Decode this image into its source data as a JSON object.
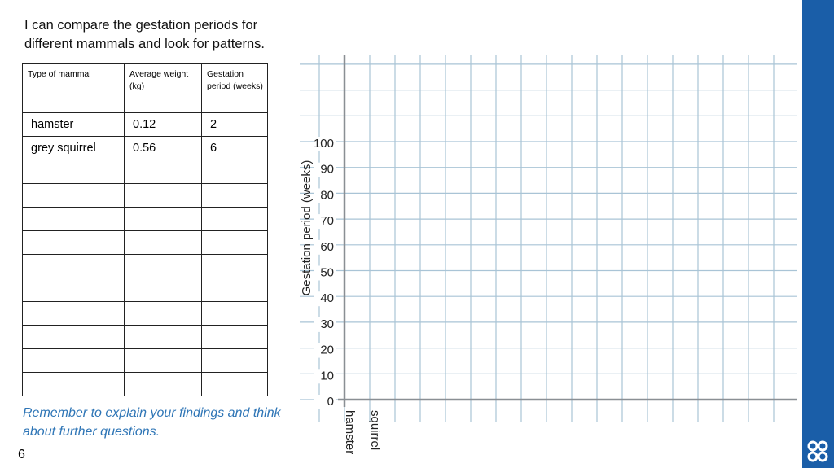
{
  "header": {
    "title": "I can compare the gestation periods for different mammals and look for patterns."
  },
  "table": {
    "headers": [
      "Type of mammal",
      "Average weight (kg)",
      "Gestation period (weeks)"
    ],
    "rows": [
      [
        "hamster",
        "0.12",
        "2"
      ],
      [
        "grey squirrel",
        "0.56",
        "6"
      ]
    ]
  },
  "graph": {
    "y_label": "Gestation period (weeks)",
    "yticks": [
      0,
      10,
      20,
      30,
      40,
      50,
      60,
      70,
      80,
      90,
      100
    ],
    "x_labels": [
      "hamster",
      "squirrel"
    ]
  },
  "reminder": "Remember to explain your findings and think about further questions.",
  "page_number": "6"
}
